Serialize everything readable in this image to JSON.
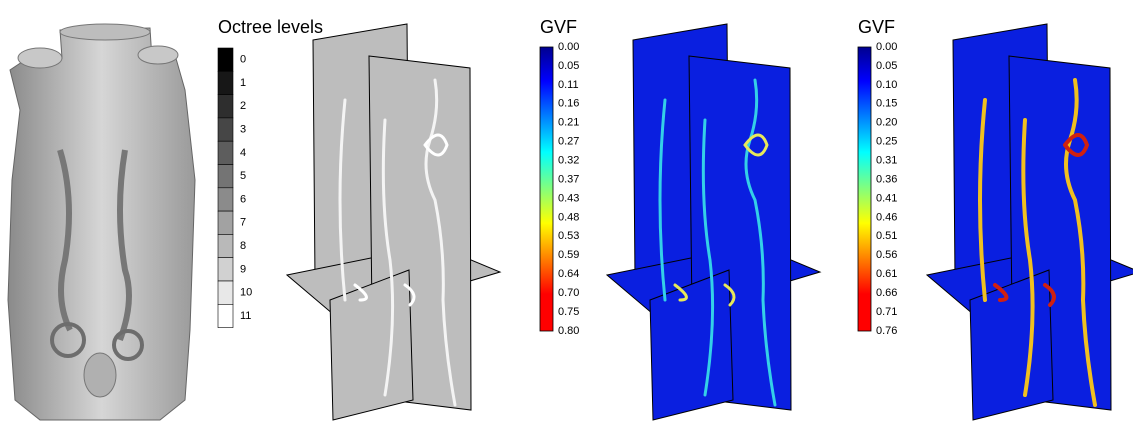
{
  "legends": [
    {
      "title": "Octree levels",
      "labels": [
        "0",
        "1",
        "2",
        "3",
        "4",
        "5",
        "6",
        "7",
        "8",
        "9",
        "10",
        "11"
      ]
    },
    {
      "title": "GVF",
      "labels": [
        "0.00",
        "0.05",
        "0.11",
        "0.16",
        "0.21",
        "0.27",
        "0.32",
        "0.37",
        "0.43",
        "0.48",
        "0.53",
        "0.59",
        "0.64",
        "0.70",
        "0.75",
        "0.80"
      ]
    },
    {
      "title": "GVF",
      "labels": [
        "0.00",
        "0.05",
        "0.10",
        "0.15",
        "0.20",
        "0.25",
        "0.31",
        "0.36",
        "0.41",
        "0.46",
        "0.51",
        "0.56",
        "0.61",
        "0.66",
        "0.71",
        "0.76"
      ]
    }
  ]
}
